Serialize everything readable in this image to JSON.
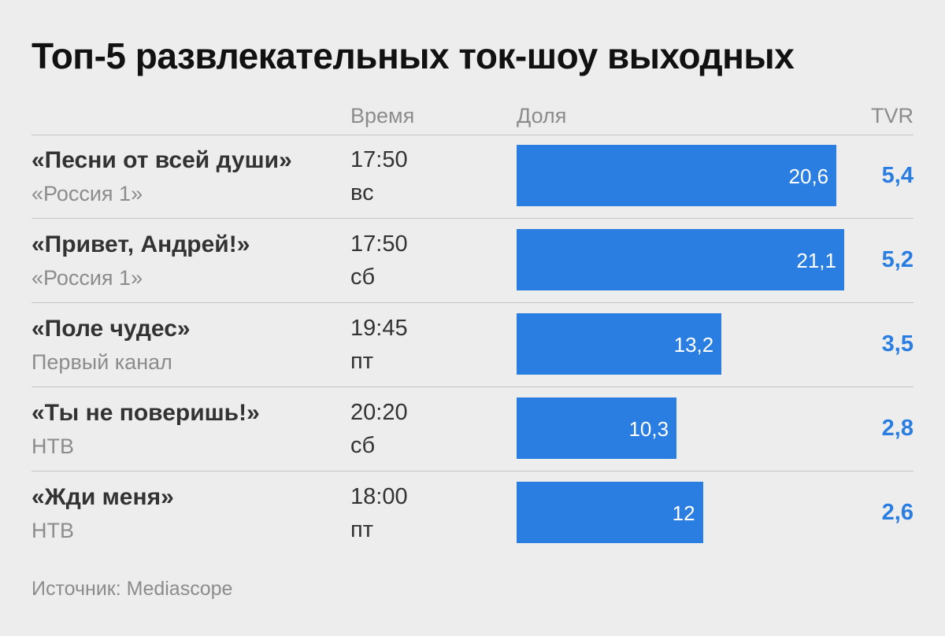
{
  "title": "Топ-5 развлекательных ток-шоу выходных",
  "headers": {
    "time": "Время",
    "share": "Доля",
    "tvr": "TVR"
  },
  "source": "Источник: Mediascope",
  "colors": {
    "bar": "#2a7de1",
    "tvr": "#2a7de1"
  },
  "chart_data": {
    "type": "bar",
    "orientation": "horizontal",
    "title": "Топ-5 развлекательных ток-шоу выходных",
    "categories": [
      "«Песни от всей души»",
      "«Привет, Андрей!»",
      "«Поле чудес»",
      "«Ты не поверишь!»",
      "«Жди меня»"
    ],
    "series": [
      {
        "name": "Доля",
        "values": [
          20.6,
          21.1,
          13.2,
          10.3,
          12
        ]
      }
    ],
    "xlim": [
      0,
      21.1
    ],
    "rows": [
      {
        "show": "«Песни от всей души»",
        "channel": "«Россия 1»",
        "time": "17:50",
        "day": "вс",
        "share": 20.6,
        "share_label": "20,6",
        "tvr": "5,4"
      },
      {
        "show": "«Привет, Андрей!»",
        "channel": "«Россия 1»",
        "time": "17:50",
        "day": "сб",
        "share": 21.1,
        "share_label": "21,1",
        "tvr": "5,2"
      },
      {
        "show": "«Поле чудес»",
        "channel": "Первый канал",
        "time": "19:45",
        "day": "пт",
        "share": 13.2,
        "share_label": "13,2",
        "tvr": "3,5"
      },
      {
        "show": "«Ты не поверишь!»",
        "channel": "НТВ",
        "time": "20:20",
        "day": "сб",
        "share": 10.3,
        "share_label": "10,3",
        "tvr": "2,8"
      },
      {
        "show": "«Жди меня»",
        "channel": "НТВ",
        "time": "18:00",
        "day": "пт",
        "share": 12,
        "share_label": "12",
        "tvr": "2,6"
      }
    ]
  }
}
